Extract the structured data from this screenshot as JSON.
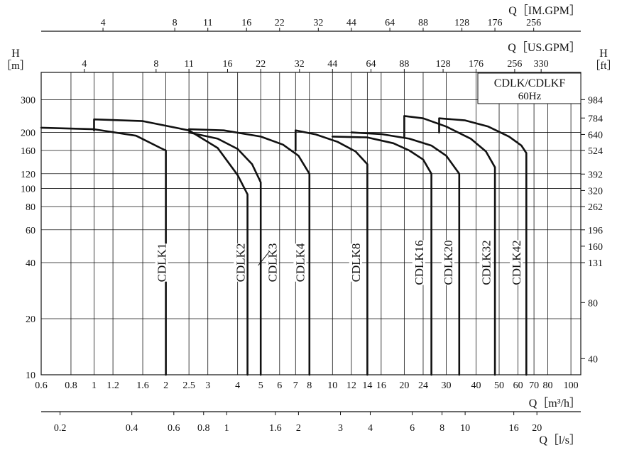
{
  "chart_data": {
    "type": "line",
    "title": "CDLK/CDLKF",
    "subtitle": "60Hz",
    "x_scale": "log",
    "y_scale": "log",
    "xlim": [
      0.6,
      110
    ],
    "ylim": [
      10,
      420
    ],
    "grid": true,
    "axes": {
      "bottom_main": {
        "label": "Q［m³/h］",
        "ticks": [
          "0.6",
          "0.8",
          "1",
          "1.2",
          "1.6",
          "2",
          "2.5",
          "3",
          "4",
          "5",
          "6",
          "7",
          "8",
          "10",
          "12",
          "14",
          "16",
          "20",
          "24",
          "30",
          "40",
          "50",
          "60",
          "70",
          "80",
          "100"
        ]
      },
      "left_h_m": {
        "label": "H",
        "unit": "［m］",
        "ticks": [
          "10",
          "20",
          "40",
          "60",
          "80",
          "100",
          "120",
          "160",
          "200",
          "300"
        ]
      },
      "right_h_ft": {
        "label": "H",
        "unit": "［ft］",
        "ticks": [
          {
            "label": "984",
            "m": 300
          },
          {
            "label": "784",
            "m": 239
          },
          {
            "label": "640",
            "m": 195
          },
          {
            "label": "524",
            "m": 160
          },
          {
            "label": "392",
            "m": 119.5
          },
          {
            "label": "320",
            "m": 97.5
          },
          {
            "label": "262",
            "m": 80
          },
          {
            "label": "196",
            "m": 60
          },
          {
            "label": "160",
            "m": 49
          },
          {
            "label": "131",
            "m": 40
          },
          {
            "label": "80",
            "m": 24.4
          },
          {
            "label": "40",
            "m": 12.2
          }
        ]
      },
      "top_im_gpm": {
        "label": "Q［IM.GPM］",
        "ticks": [
          {
            "label": "4",
            "q": 1.09
          },
          {
            "label": "8",
            "q": 2.18
          },
          {
            "label": "11",
            "q": 3.0
          },
          {
            "label": "16",
            "q": 4.36
          },
          {
            "label": "22",
            "q": 6.0
          },
          {
            "label": "32",
            "q": 8.72
          },
          {
            "label": "44",
            "q": 12.0
          },
          {
            "label": "64",
            "q": 17.4
          },
          {
            "label": "88",
            "q": 24.0
          },
          {
            "label": "128",
            "q": 34.9
          },
          {
            "label": "176",
            "q": 48.0
          },
          {
            "label": "256",
            "q": 69.8
          }
        ]
      },
      "top_us_gpm": {
        "label": "Q［US.GPM］",
        "ticks": [
          {
            "label": "4",
            "q": 0.91
          },
          {
            "label": "8",
            "q": 1.82
          },
          {
            "label": "11",
            "q": 2.5
          },
          {
            "label": "16",
            "q": 3.63
          },
          {
            "label": "22",
            "q": 5.0
          },
          {
            "label": "32",
            "q": 7.27
          },
          {
            "label": "44",
            "q": 10.0
          },
          {
            "label": "64",
            "q": 14.5
          },
          {
            "label": "88",
            "q": 20.0
          },
          {
            "label": "128",
            "q": 29.1
          },
          {
            "label": "176",
            "q": 40.0
          },
          {
            "label": "256",
            "q": 58.1
          },
          {
            "label": "330",
            "q": 75.0
          }
        ]
      },
      "bottom_ls": {
        "label": "Q［l/s］",
        "ticks": [
          {
            "label": "0.2",
            "q": 0.72
          },
          {
            "label": "0.4",
            "q": 1.44
          },
          {
            "label": "0.6",
            "q": 2.16
          },
          {
            "label": "0.8",
            "q": 2.88
          },
          {
            "label": "1",
            "q": 3.6
          },
          {
            "label": "1.6",
            "q": 5.76
          },
          {
            "label": "2",
            "q": 7.2
          },
          {
            "label": "3",
            "q": 10.8
          },
          {
            "label": "4",
            "q": 14.4
          },
          {
            "label": "6",
            "q": 21.6
          },
          {
            "label": "8",
            "q": 28.8
          },
          {
            "label": "10",
            "q": 36.0
          },
          {
            "label": "16",
            "q": 57.6
          },
          {
            "label": "20",
            "q": 72.0
          }
        ]
      }
    },
    "series": [
      {
        "name": "CDLK1",
        "label_q": 1.92,
        "label_h": 40,
        "x": [
          0.6,
          1.0,
          1.5,
          1.9,
          2.0,
          2.0
        ],
        "y": [
          212,
          208,
          192,
          165,
          160,
          10
        ]
      },
      {
        "name": "CDLK2",
        "label_q": 4.1,
        "label_h": 40,
        "x": [
          1.0,
          1.0,
          1.6,
          2.5,
          3.3,
          4.0,
          4.4,
          4.4
        ],
        "y": [
          205,
          235,
          230,
          205,
          165,
          118,
          93,
          10
        ]
      },
      {
        "name": "CDLK3",
        "label_q": 5.6,
        "label_h": 40,
        "leader": true,
        "x": [
          2.5,
          3.3,
          4.0,
          4.6,
          5.0,
          5.0
        ],
        "y": [
          200,
          185,
          163,
          135,
          108,
          10
        ]
      },
      {
        "name": "CDLK4",
        "label_q": 7.3,
        "label_h": 40,
        "x": [
          2.5,
          3.5,
          5.0,
          6.2,
          7.2,
          8.0,
          8.0
        ],
        "y": [
          208,
          205,
          190,
          172,
          150,
          120,
          10
        ]
      },
      {
        "name": "CDLK8",
        "label_q": 12.5,
        "label_h": 40,
        "x": [
          7.0,
          7.0,
          8.5,
          10.5,
          12.5,
          14.0,
          14.0
        ],
        "y": [
          160,
          205,
          195,
          178,
          158,
          135,
          10
        ]
      },
      {
        "name": "CDLK16",
        "label_q": 23.0,
        "label_h": 40,
        "x": [
          10.0,
          14.0,
          18.0,
          21.0,
          24.0,
          26.0,
          26.0
        ],
        "y": [
          190,
          188,
          175,
          160,
          143,
          120,
          10
        ]
      },
      {
        "name": "CDLK20",
        "label_q": 30.5,
        "label_h": 40,
        "x": [
          12.0,
          16.0,
          21.0,
          26.0,
          30.0,
          34.0,
          34.0
        ],
        "y": [
          200,
          196,
          185,
          170,
          150,
          120,
          10
        ]
      },
      {
        "name": "CDLK32",
        "label_q": 44.0,
        "label_h": 40,
        "x": [
          20.0,
          20.0,
          24.0,
          30.0,
          38.0,
          44.0,
          48.0,
          48.0
        ],
        "y": [
          190,
          245,
          238,
          215,
          185,
          158,
          130,
          10
        ]
      },
      {
        "name": "CDLK42",
        "label_q": 59.0,
        "label_h": 40,
        "x": [
          28.0,
          28.0,
          36.0,
          45.0,
          55.0,
          62.0,
          65.0,
          65.0
        ],
        "y": [
          200,
          238,
          232,
          215,
          190,
          170,
          155,
          10
        ]
      }
    ]
  }
}
